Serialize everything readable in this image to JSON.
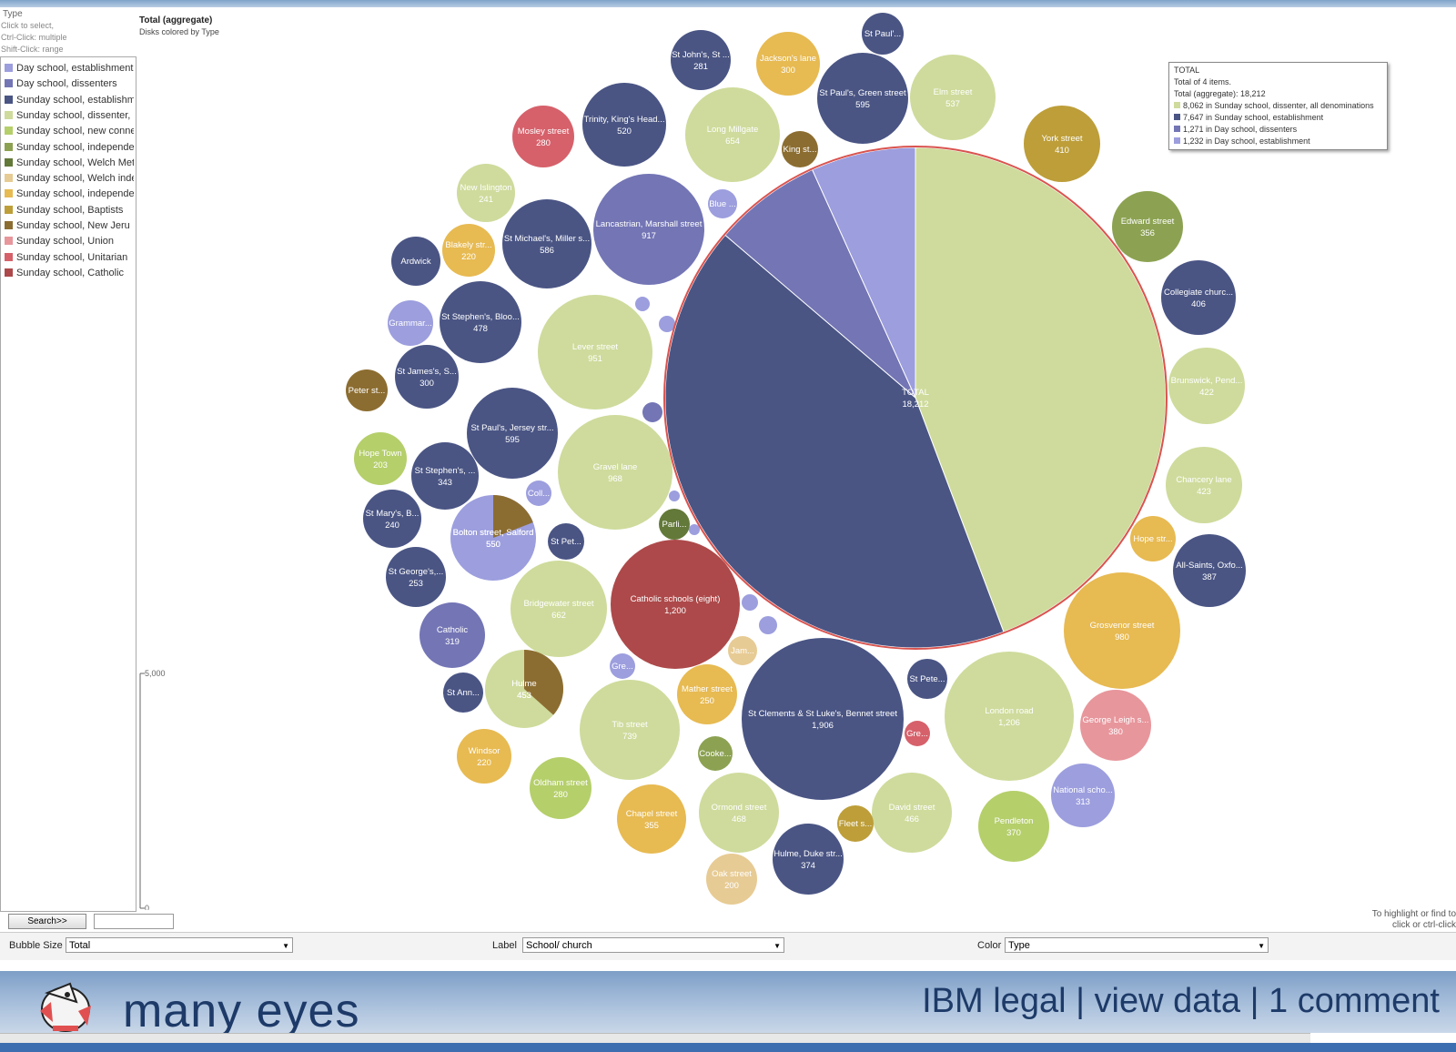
{
  "legend": {
    "title": "Type",
    "hints": [
      "Click to select,",
      "Ctrl-Click: multiple",
      "Shift-Click: range"
    ],
    "items": [
      {
        "label": "Day school, establishment",
        "color": "#9c9ede"
      },
      {
        "label": "Day school, dissenters",
        "color": "#7375b5"
      },
      {
        "label": "Sunday school, establishm",
        "color": "#4a5584"
      },
      {
        "label": "Sunday school, dissenter,",
        "color": "#cedb9c"
      },
      {
        "label": "Sunday school, new conne",
        "color": "#b5cf6b"
      },
      {
        "label": "Sunday school, independe",
        "color": "#8ca252"
      },
      {
        "label": "Sunday school, Welch Met",
        "color": "#637939"
      },
      {
        "label": "Sunday school, Welch inde",
        "color": "#e7cb94"
      },
      {
        "label": "Sunday school,  independe",
        "color": "#e7ba52"
      },
      {
        "label": "Sunday school,  Baptists",
        "color": "#bd9e39"
      },
      {
        "label": "Sunday school,  New Jeru",
        "color": "#8c6d31"
      },
      {
        "label": "Sunday school, Union",
        "color": "#e7969c"
      },
      {
        "label": "Sunday school, Unitarian",
        "color": "#d6616b"
      },
      {
        "label": "Sunday school, Catholic",
        "color": "#ad494a"
      }
    ]
  },
  "search": {
    "button_label": "Search>>",
    "value": ""
  },
  "chart_header": {
    "title": "Total (aggregate)",
    "subtitle": "Disks colored by Type"
  },
  "scale": {
    "max_label": "5,000",
    "min_label": "0"
  },
  "total_box": {
    "title": "TOTAL",
    "line1": "Total of 4 items.",
    "line2": "Total (aggregate): 18,212",
    "items": [
      {
        "text": "8,062 in Sunday school, dissenter, all denominations",
        "color": "#cedb9c"
      },
      {
        "text": "7,647 in Sunday school, establishment",
        "color": "#4a5584"
      },
      {
        "text": "1,271 in Day school, dissenters",
        "color": "#7375b5"
      },
      {
        "text": "1,232 in Day school, establishment",
        "color": "#9c9ede"
      }
    ]
  },
  "right_hint": [
    "To highlight or find to",
    "click or ctrl-click"
  ],
  "controls": {
    "bubble_size_label": "Bubble Size",
    "bubble_size_value": "Total",
    "label_label": "Label",
    "label_value": "School/ church",
    "color_label": "Color",
    "color_value": "Type"
  },
  "footer": {
    "brand": "many eyes",
    "links": "IBM legal | view data | 1 comment"
  },
  "chart_data": {
    "type": "bubble",
    "size_by": "Total",
    "colored_by": "Type",
    "center": {
      "name": "TOTAL",
      "value": "18,212",
      "slices": [
        {
          "label": "Sunday school, dissenter, all denominations",
          "value": 8062,
          "color": "#cedb9c"
        },
        {
          "label": "Sunday school, establishment",
          "value": 7647,
          "color": "#4a5584"
        },
        {
          "label": "Day school, dissenters",
          "value": 1271,
          "color": "#7375b5"
        },
        {
          "label": "Day school, establishment",
          "value": 1232,
          "color": "#9c9ede"
        }
      ]
    },
    "bubbles": [
      {
        "name": "St Paul'...",
        "value": "",
        "color": "#4a5584"
      },
      {
        "name": "St John's, St ...",
        "value": "281",
        "color": "#4a5584"
      },
      {
        "name": "Jackson's lane",
        "value": "300",
        "color": "#e7ba52"
      },
      {
        "name": "St Paul's, Green street",
        "value": "595",
        "color": "#4a5584"
      },
      {
        "name": "Elm street",
        "value": "537",
        "color": "#cedb9c"
      },
      {
        "name": "Trinity, King's Head...",
        "value": "520",
        "color": "#4a5584"
      },
      {
        "name": "Long Millgate",
        "value": "654",
        "color": "#cedb9c"
      },
      {
        "name": "Mosley street",
        "value": "280",
        "color": "#d6616b"
      },
      {
        "name": "King st...",
        "value": "",
        "color": "#8c6d31"
      },
      {
        "name": "York street",
        "value": "410",
        "color": "#bd9e39"
      },
      {
        "name": "New Islington",
        "value": "241",
        "color": "#cedb9c"
      },
      {
        "name": "Blue ...",
        "value": "",
        "color": "#9c9ede"
      },
      {
        "name": "Lancastrian, Marshall street",
        "value": "917",
        "color": "#7375b5"
      },
      {
        "name": "Edward street",
        "value": "356",
        "color": "#8ca252"
      },
      {
        "name": "St Michael's, Miller s...",
        "value": "586",
        "color": "#4a5584"
      },
      {
        "name": "Blakely str...",
        "value": "220",
        "color": "#e7ba52"
      },
      {
        "name": "Ardwick",
        "value": "",
        "color": "#4a5584"
      },
      {
        "name": "Collegiate churc...",
        "value": "406",
        "color": "#4a5584"
      },
      {
        "name": "Grammar...",
        "value": "",
        "color": "#9c9ede"
      },
      {
        "name": "St Stephen's, Bloo...",
        "value": "478",
        "color": "#4a5584"
      },
      {
        "name": "Lever street",
        "value": "951",
        "color": "#cedb9c"
      },
      {
        "name": "Brunswick, Pend...",
        "value": "422",
        "color": "#cedb9c"
      },
      {
        "name": "Peter st...",
        "value": "",
        "color": "#8c6d31"
      },
      {
        "name": "St James's, S...",
        "value": "300",
        "color": "#4a5584"
      },
      {
        "name": "St Paul's, Jersey str...",
        "value": "595",
        "color": "#4a5584"
      },
      {
        "name": "Hope Town",
        "value": "203",
        "color": "#b5cf6b"
      },
      {
        "name": "Gravel lane",
        "value": "968",
        "color": "#cedb9c"
      },
      {
        "name": "Chancery lane",
        "value": "423",
        "color": "#cedb9c"
      },
      {
        "name": "St Stephen's, ...",
        "value": "343",
        "color": "#4a5584"
      },
      {
        "name": "Coll...",
        "value": "",
        "color": "#9c9ede"
      },
      {
        "name": "St Mary's, B...",
        "value": "240",
        "color": "#4a5584"
      },
      {
        "name": "Bolton street, Salford",
        "value": "550",
        "color": "#9c9ede"
      },
      {
        "name": "Parli...",
        "value": "",
        "color": "#637939"
      },
      {
        "name": "Hope str...",
        "value": "",
        "color": "#e7ba52"
      },
      {
        "name": "St Pet...",
        "value": "",
        "color": "#4a5584"
      },
      {
        "name": "All-Saints, Oxfo...",
        "value": "387",
        "color": "#4a5584"
      },
      {
        "name": "St George's,...",
        "value": "253",
        "color": "#4a5584"
      },
      {
        "name": "Bridgewater street",
        "value": "662",
        "color": "#cedb9c"
      },
      {
        "name": "Catholic schools (eight)",
        "value": "1,200",
        "color": "#ad494a"
      },
      {
        "name": "Grosvenor street",
        "value": "980",
        "color": "#e7ba52"
      },
      {
        "name": "Catholic",
        "value": "319",
        "color": "#7375b5"
      },
      {
        "name": "Jam...",
        "value": "",
        "color": "#e7cb94"
      },
      {
        "name": "Gre...",
        "value": "",
        "color": "#9c9ede"
      },
      {
        "name": "Hulme",
        "value": "453",
        "color": "#cedb9c"
      },
      {
        "name": "St Ann...",
        "value": "",
        "color": "#4a5584"
      },
      {
        "name": "St Pete...",
        "value": "",
        "color": "#4a5584"
      },
      {
        "name": "Mather street",
        "value": "250",
        "color": "#e7ba52"
      },
      {
        "name": "St Clements & St Luke's, Bennet street",
        "value": "1,906",
        "color": "#4a5584"
      },
      {
        "name": "London road",
        "value": "1,206",
        "color": "#cedb9c"
      },
      {
        "name": "George Leigh s...",
        "value": "380",
        "color": "#e7969c"
      },
      {
        "name": "Tib street",
        "value": "739",
        "color": "#cedb9c"
      },
      {
        "name": "Gre...",
        "value": "",
        "color": "#d6616b"
      },
      {
        "name": "Windsor",
        "value": "220",
        "color": "#e7ba52"
      },
      {
        "name": "Cooke...",
        "value": "",
        "color": "#8ca252"
      },
      {
        "name": "National scho...",
        "value": "313",
        "color": "#9c9ede"
      },
      {
        "name": "Oldham street",
        "value": "280",
        "color": "#b5cf6b"
      },
      {
        "name": "Ormond street",
        "value": "468",
        "color": "#cedb9c"
      },
      {
        "name": "David street",
        "value": "466",
        "color": "#cedb9c"
      },
      {
        "name": "Chapel street",
        "value": "355",
        "color": "#e7ba52"
      },
      {
        "name": "Fleet s...",
        "value": "",
        "color": "#bd9e39"
      },
      {
        "name": "Pendleton",
        "value": "370",
        "color": "#b5cf6b"
      },
      {
        "name": "Hulme, Duke str...",
        "value": "374",
        "color": "#4a5584"
      },
      {
        "name": "Oak street",
        "value": "200",
        "color": "#e7cb94"
      }
    ]
  }
}
